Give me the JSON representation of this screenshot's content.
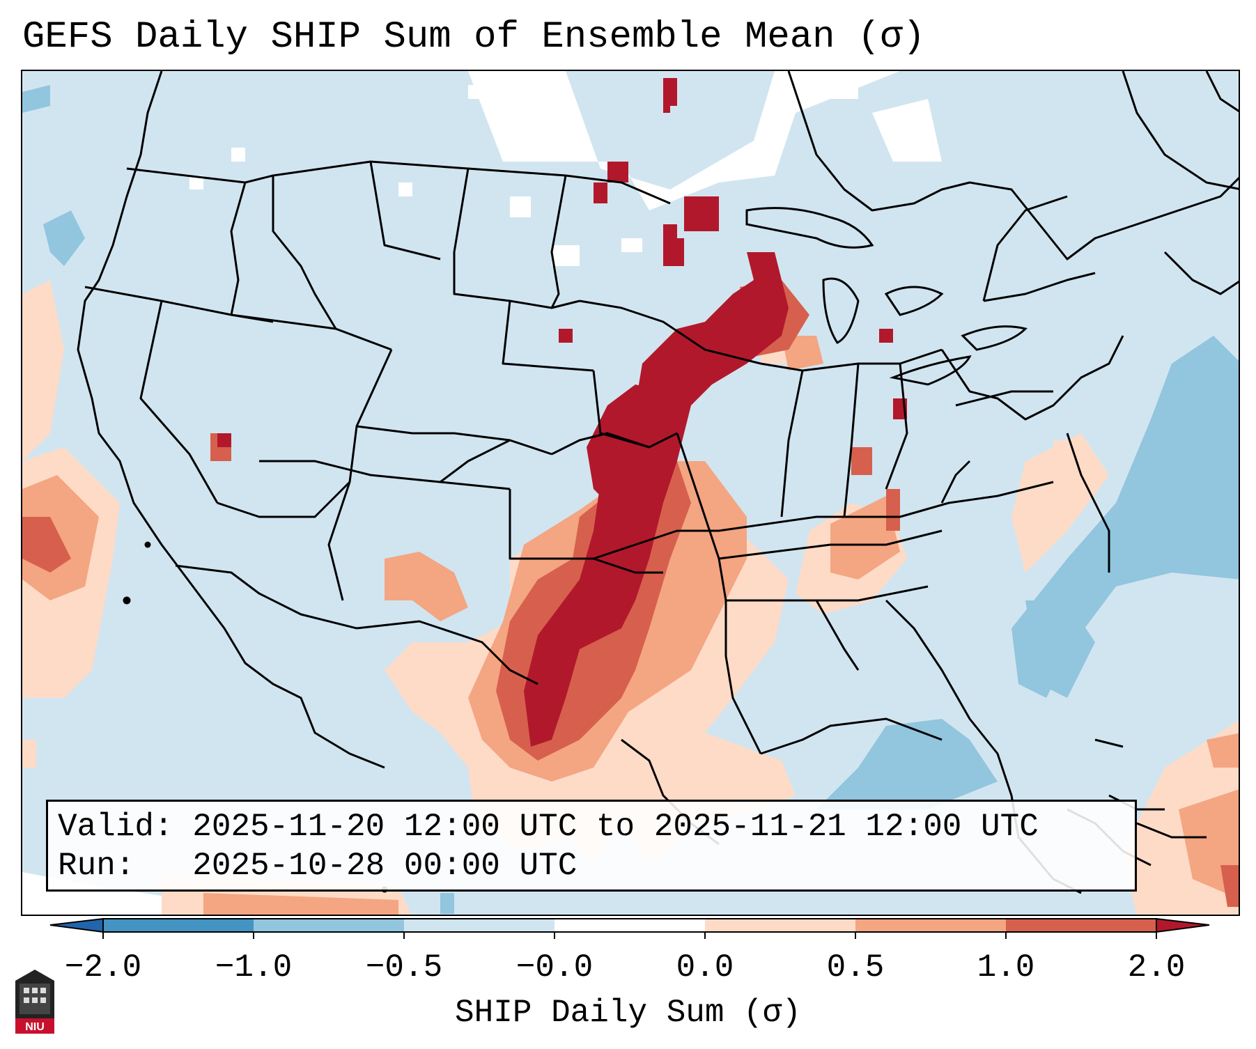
{
  "header": {
    "title": "GEFS Daily SHIP Sum of Ensemble Mean (σ)"
  },
  "info": {
    "valid": "Valid: 2025-11-20 12:00 UTC to 2025-11-21 12:00 UTC",
    "run": "Run:   2025-10-28 00:00 UTC"
  },
  "colorbar": {
    "label": "SHIP Daily Sum (σ)",
    "ticks": [
      "−2.0",
      "−1.0",
      "−0.5",
      "−0.0",
      "0.0",
      "0.5",
      "1.0",
      "2.0"
    ],
    "colors": [
      "#4393c3",
      "#92c5de",
      "#d1e5f0",
      "#fddbc7",
      "#f4a582",
      "#d6604d",
      "#b2182b"
    ],
    "under_color": "#2166ac",
    "over_color": "#b2182b"
  },
  "map": {
    "background_color": "#d1e5f0",
    "no_data_color": "#ffffff",
    "field_colors": {
      "light_red": "#fddbc7",
      "mid_red": "#f4a582",
      "red": "#d6604d",
      "dark_red": "#b2182b",
      "mid_blue": "#92c5de"
    }
  },
  "logo": {
    "text": "NIU"
  }
}
